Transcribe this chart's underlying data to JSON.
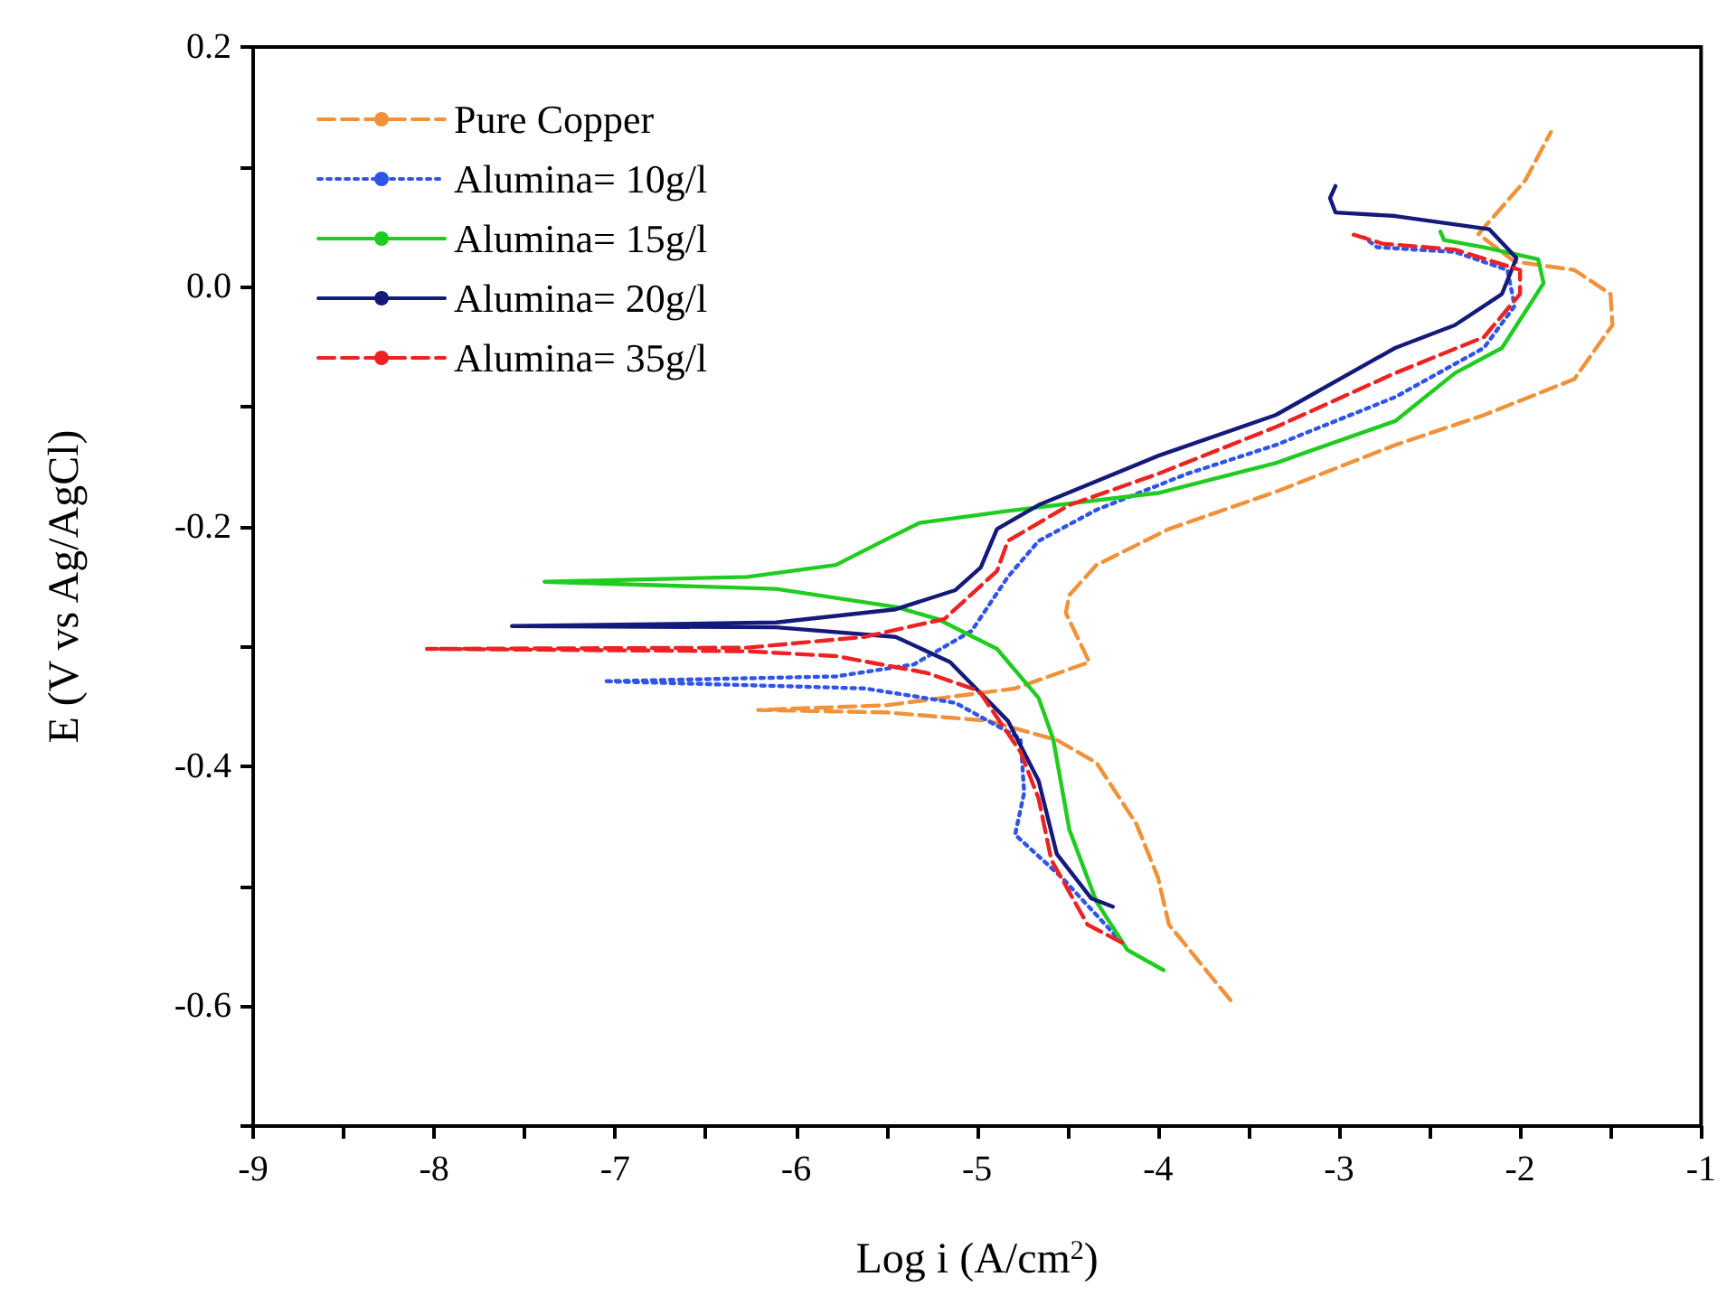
{
  "chart_data": {
    "type": "line",
    "xlabel": "Log i (A/cm$^{2}$)",
    "ylabel": "E (V vs Ag/AgCl)",
    "xlim": [
      -9,
      -1
    ],
    "xticks": [
      -9,
      {
        "value": -8.5,
        "label": null
      },
      -8,
      {
        "value": -7.5,
        "label": null
      },
      -7,
      {
        "value": -6.5,
        "label": null
      },
      -6,
      {
        "value": -5.5,
        "label": null
      },
      -5,
      {
        "value": -4.5,
        "label": null
      },
      -4,
      {
        "value": -3.5,
        "label": null
      },
      -3,
      {
        "value": -2.5,
        "label": null
      },
      -2,
      {
        "value": -1.5,
        "label": null
      },
      -1
    ],
    "ylim": [
      -0.7,
      0.2
    ],
    "yticks": [
      {
        "value": -0.7,
        "label": null
      },
      -0.6,
      {
        "value": -0.5,
        "label": null
      },
      -0.4,
      {
        "value": -0.3,
        "label": null
      },
      -0.2,
      {
        "value": -0.1,
        "label": null
      },
      {
        "value": 0,
        "label": "0.0"
      },
      {
        "value": 0.1,
        "label": null
      },
      0.2
    ],
    "grid": false,
    "legend": "top left",
    "marker": "none",
    "series": [
      {
        "name": "Pure Copper",
        "color": "#f0923a",
        "line_style": "dashed",
        "x": [
          -3.6,
          -3.94,
          -4.0,
          -4.12,
          -4.34,
          -4.56,
          -4.94,
          -5.5,
          -6.21,
          -5.5,
          -4.79,
          -4.38,
          -4.51,
          -4.49,
          -4.34,
          -3.94,
          -3.35,
          -2.69,
          -2.2,
          -1.7,
          -1.49,
          -1.5,
          -1.7,
          -2.03,
          -2.23,
          -1.97,
          -1.83
        ],
        "values": [
          -0.595,
          -0.532,
          -0.493,
          -0.448,
          -0.397,
          -0.378,
          -0.362,
          -0.355,
          -0.353,
          -0.349,
          -0.335,
          -0.313,
          -0.272,
          -0.257,
          -0.232,
          -0.202,
          -0.171,
          -0.132,
          -0.107,
          -0.077,
          -0.032,
          -0.006,
          0.014,
          0.021,
          0.044,
          0.089,
          0.129
        ]
      },
      {
        "name": "Alumina= 10g/l",
        "color": "#2f55e8",
        "line_style": "dotted",
        "x": [
          -4.2,
          -4.53,
          -4.79,
          -4.74,
          -4.76,
          -5.12,
          -5.62,
          -7.06,
          -5.78,
          -5.35,
          -5.03,
          -4.83,
          -4.66,
          -4.34,
          -3.84,
          -3.35,
          -2.69,
          -2.2,
          -2.03,
          -2.07,
          -2.36,
          -2.79,
          -2.86
        ],
        "values": [
          -0.547,
          -0.493,
          -0.457,
          -0.422,
          -0.377,
          -0.347,
          -0.335,
          -0.329,
          -0.325,
          -0.315,
          -0.287,
          -0.242,
          -0.212,
          -0.186,
          -0.156,
          -0.132,
          -0.092,
          -0.051,
          -0.016,
          0.014,
          0.029,
          0.033,
          0.041
        ]
      },
      {
        "name": "Alumina= 15g/l",
        "color": "#1fcc1f",
        "line_style": "solid",
        "x": [
          -3.97,
          -4.17,
          -4.34,
          -4.49,
          -4.58,
          -4.66,
          -4.89,
          -5.22,
          -5.45,
          -6.11,
          -7.39,
          -6.27,
          -5.78,
          -5.52,
          -5.32,
          -4.83,
          -4.0,
          -3.35,
          -2.69,
          -2.36,
          -2.1,
          -1.87,
          -1.9,
          -2.2,
          -2.42,
          -2.44
        ],
        "values": [
          -0.57,
          -0.553,
          -0.513,
          -0.453,
          -0.377,
          -0.343,
          -0.302,
          -0.277,
          -0.267,
          -0.252,
          -0.246,
          -0.242,
          -0.232,
          -0.212,
          -0.197,
          -0.187,
          -0.172,
          -0.147,
          -0.112,
          -0.072,
          -0.051,
          0.003,
          0.023,
          0.033,
          0.039,
          0.046
        ]
      },
      {
        "name": "Alumina= 20g/l",
        "color": "#141a7a",
        "line_style": "solid",
        "x": [
          -4.25,
          -4.37,
          -4.56,
          -4.66,
          -4.83,
          -5.15,
          -5.45,
          -6.11,
          -7.57,
          -6.11,
          -5.45,
          -5.12,
          -4.98,
          -4.89,
          -4.66,
          -4.0,
          -3.35,
          -2.69,
          -2.36,
          -2.1,
          -2.02,
          -2.17,
          -2.69,
          -3.02,
          -3.05,
          -3.02
        ],
        "values": [
          -0.517,
          -0.51,
          -0.473,
          -0.412,
          -0.362,
          -0.313,
          -0.292,
          -0.284,
          -0.283,
          -0.28,
          -0.269,
          -0.253,
          -0.234,
          -0.202,
          -0.182,
          -0.141,
          -0.107,
          -0.051,
          -0.032,
          -0.006,
          0.024,
          0.048,
          0.059,
          0.062,
          0.074,
          0.084
        ]
      },
      {
        "name": "Alumina= 35g/l",
        "color": "#ee2222",
        "line_style": "dashed",
        "x": [
          -4.2,
          -4.39,
          -4.59,
          -4.66,
          -4.76,
          -4.99,
          -5.28,
          -5.78,
          -6.27,
          -8.04,
          -6.27,
          -5.62,
          -5.18,
          -4.89,
          -4.83,
          -4.49,
          -4.0,
          -3.35,
          -2.69,
          -2.2,
          -2.0,
          -2.0,
          -2.36,
          -2.76,
          -2.93
        ],
        "values": [
          -0.547,
          -0.532,
          -0.478,
          -0.427,
          -0.388,
          -0.337,
          -0.322,
          -0.308,
          -0.304,
          -0.302,
          -0.301,
          -0.292,
          -0.277,
          -0.237,
          -0.212,
          -0.182,
          -0.156,
          -0.117,
          -0.072,
          -0.042,
          -0.006,
          0.014,
          0.031,
          0.036,
          0.044
        ]
      }
    ]
  }
}
